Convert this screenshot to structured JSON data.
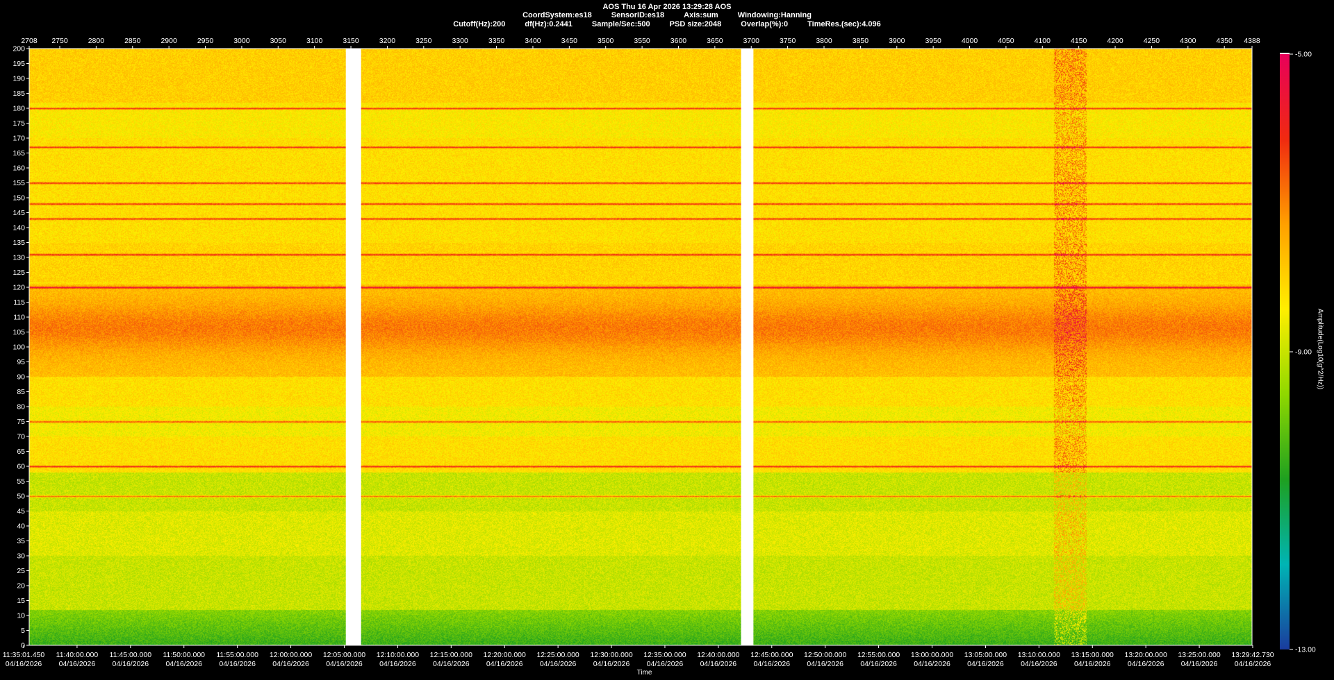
{
  "header": {
    "line1": "AOS  Thu 16 Apr 2026 13:29:28  AOS",
    "line2": [
      "CoordSystem:es18",
      "SensorID:es18",
      "Axis:sum",
      "Windowing:Hanning"
    ],
    "line3": [
      "Cutoff(Hz):200",
      "df(Hz):0.2441",
      "Sample/Sec:500",
      "PSD size:2048",
      "Overlap(%):0",
      "TimeRes.(sec):4.096"
    ]
  },
  "chart_data": {
    "type": "heatmap",
    "title": "AOS  Thu 16 Apr 2026 13:29:28  AOS",
    "xlabel": "Time",
    "ylabel": "Amplitude(Log10(g^2/Hz))",
    "ylim": [
      0,
      200
    ],
    "y_ticks": [
      0,
      5,
      10,
      15,
      20,
      25,
      30,
      35,
      40,
      45,
      50,
      55,
      60,
      65,
      70,
      75,
      80,
      85,
      90,
      95,
      100,
      105,
      110,
      115,
      120,
      125,
      130,
      135,
      140,
      145,
      150,
      155,
      160,
      165,
      170,
      175,
      180,
      185,
      190,
      195,
      200
    ],
    "top_axis_range": [
      2708,
      4388
    ],
    "top_ticks": [
      "2708",
      "2750",
      "2800",
      "2850",
      "2900",
      "2950",
      "3000",
      "3050",
      "3100",
      "3150",
      "3200",
      "3250",
      "3300",
      "3350",
      "3400",
      "3450",
      "3500",
      "3550",
      "3600",
      "3650",
      "3700",
      "3750",
      "3800",
      "3850",
      "3900",
      "3950",
      "4000",
      "4050",
      "4100",
      "4150",
      "4200",
      "4250",
      "4300",
      "4350",
      "4388"
    ],
    "time_ticks": [
      {
        "time": "11:35:01.450",
        "date": "04/16/2026"
      },
      {
        "time": "11:40:00.000",
        "date": "04/16/2026"
      },
      {
        "time": "11:45:00.000",
        "date": "04/16/2026"
      },
      {
        "time": "11:50:00.000",
        "date": "04/16/2026"
      },
      {
        "time": "11:55:00.000",
        "date": "04/16/2026"
      },
      {
        "time": "12:00:00.000",
        "date": "04/16/2026"
      },
      {
        "time": "12:05:00.000",
        "date": "04/16/2026"
      },
      {
        "time": "12:10:00.000",
        "date": "04/16/2026"
      },
      {
        "time": "12:15:00.000",
        "date": "04/16/2026"
      },
      {
        "time": "12:20:00.000",
        "date": "04/16/2026"
      },
      {
        "time": "12:25:00.000",
        "date": "04/16/2026"
      },
      {
        "time": "12:30:00.000",
        "date": "04/16/2026"
      },
      {
        "time": "12:35:00.000",
        "date": "04/16/2026"
      },
      {
        "time": "12:40:00.000",
        "date": "04/16/2026"
      },
      {
        "time": "12:45:00.000",
        "date": "04/16/2026"
      },
      {
        "time": "12:50:00.000",
        "date": "04/16/2026"
      },
      {
        "time": "12:55:00.000",
        "date": "04/16/2026"
      },
      {
        "time": "13:00:00.000",
        "date": "04/16/2026"
      },
      {
        "time": "13:05:00.000",
        "date": "04/16/2026"
      },
      {
        "time": "13:10:00.000",
        "date": "04/16/2026"
      },
      {
        "time": "13:15:00.000",
        "date": "04/16/2026"
      },
      {
        "time": "13:20:00.000",
        "date": "04/16/2026"
      },
      {
        "time": "13:25:00.000",
        "date": "04/16/2026"
      },
      {
        "time": "13:29:42.730",
        "date": "04/16/2026"
      }
    ],
    "data_gaps_top_axis": [
      [
        3143,
        3164
      ],
      [
        3686,
        3703
      ]
    ],
    "spectral_lines_hz": [
      180,
      167,
      155,
      148,
      143,
      131,
      120,
      75,
      60,
      50
    ],
    "broadband_peak_band_hz": [
      95,
      118
    ],
    "low_frequency_band_hz": [
      0,
      12
    ],
    "disturbance_top_axis": [
      4115,
      4160
    ],
    "colorbar": {
      "range": [
        -13.0,
        -5.0
      ],
      "ticks": [
        "-5.00",
        "-9.00",
        "-13.00"
      ],
      "colors": [
        "#e8005a",
        "#f02a10",
        "#ffa000",
        "#ffef00",
        "#8fd800",
        "#1ea020",
        "#00b4b4",
        "#1a3c9e"
      ]
    }
  }
}
